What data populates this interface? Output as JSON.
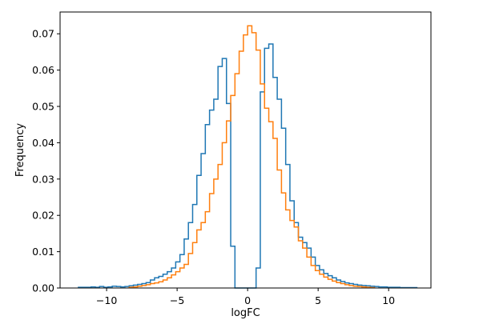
{
  "chart_data": {
    "type": "histogram-step",
    "title": "",
    "xlabel": "logFC",
    "ylabel": "Frequency",
    "xlim": [
      -13.3,
      13.0
    ],
    "ylim": [
      0,
      0.076
    ],
    "xticks": [
      -10,
      -5,
      0,
      5,
      10
    ],
    "xtick_labels": [
      "−10",
      "−5",
      "0",
      "5",
      "10"
    ],
    "yticks": [
      0.0,
      0.01,
      0.02,
      0.03,
      0.04,
      0.05,
      0.06,
      0.07
    ],
    "ytick_labels": [
      "0.00",
      "0.01",
      "0.02",
      "0.03",
      "0.04",
      "0.05",
      "0.06",
      "0.07"
    ],
    "grid": false,
    "legend": "none",
    "series": [
      {
        "color": "#1f77b4",
        "edges": [
          -12.0,
          -11.7,
          -11.4,
          -11.1,
          -10.8,
          -10.5,
          -10.2,
          -9.9,
          -9.6,
          -9.3,
          -9.0,
          -8.7,
          -8.4,
          -8.1,
          -7.8,
          -7.5,
          -7.2,
          -6.9,
          -6.6,
          -6.3,
          -6.0,
          -5.7,
          -5.4,
          -5.1,
          -4.8,
          -4.5,
          -4.2,
          -3.9,
          -3.6,
          -3.3,
          -3.0,
          -2.7,
          -2.4,
          -2.1,
          -1.8,
          -1.5,
          -1.2,
          -0.9,
          -0.6,
          -0.3,
          0.0,
          0.3,
          0.6,
          0.9,
          1.2,
          1.5,
          1.8,
          2.1,
          2.4,
          2.7,
          3.0,
          3.3,
          3.6,
          3.9,
          4.2,
          4.5,
          4.8,
          5.1,
          5.4,
          5.7,
          6.0,
          6.3,
          6.6,
          6.9,
          7.2,
          7.5,
          7.8,
          8.1,
          8.4,
          8.7,
          9.0,
          9.3,
          9.6,
          9.9,
          10.2,
          10.5,
          10.8,
          11.1,
          11.4,
          11.7,
          12.0
        ],
        "values": [
          0.0002,
          0.0002,
          0.0002,
          0.0003,
          0.0002,
          0.0004,
          0.0002,
          0.0003,
          0.0005,
          0.0004,
          0.0003,
          0.0004,
          0.0006,
          0.0008,
          0.001,
          0.0012,
          0.0015,
          0.0022,
          0.0028,
          0.0032,
          0.0038,
          0.0045,
          0.0055,
          0.0072,
          0.0092,
          0.0135,
          0.018,
          0.023,
          0.031,
          0.037,
          0.045,
          0.049,
          0.052,
          0.061,
          0.0632,
          0.0508,
          0.0115,
          0.0,
          0.0,
          0.0,
          0.0,
          0.0,
          0.0055,
          0.054,
          0.066,
          0.0672,
          0.058,
          0.052,
          0.044,
          0.034,
          0.024,
          0.018,
          0.014,
          0.0125,
          0.011,
          0.0085,
          0.0062,
          0.005,
          0.004,
          0.0034,
          0.0028,
          0.0022,
          0.0018,
          0.0014,
          0.0012,
          0.001,
          0.0008,
          0.0007,
          0.0006,
          0.0005,
          0.0004,
          0.0003,
          0.0003,
          0.0002,
          0.0002,
          0.0002,
          0.0001,
          0.0001,
          0.0001,
          0.0001
        ]
      },
      {
        "color": "#ff7f0e",
        "edges": [
          -8.4,
          -8.1,
          -7.8,
          -7.5,
          -7.2,
          -6.9,
          -6.6,
          -6.3,
          -6.0,
          -5.7,
          -5.4,
          -5.1,
          -4.8,
          -4.5,
          -4.2,
          -3.9,
          -3.6,
          -3.3,
          -3.0,
          -2.7,
          -2.4,
          -2.1,
          -1.8,
          -1.5,
          -1.2,
          -0.9,
          -0.6,
          -0.3,
          0.0,
          0.3,
          0.6,
          0.9,
          1.2,
          1.5,
          1.8,
          2.1,
          2.4,
          2.7,
          3.0,
          3.3,
          3.6,
          3.9,
          4.2,
          4.5,
          4.8,
          5.1,
          5.4,
          5.7,
          6.0,
          6.3,
          6.6,
          6.9,
          7.2,
          7.5,
          7.8,
          8.1,
          8.4,
          8.7,
          9.0
        ],
        "values": [
          0.0002,
          0.0003,
          0.0005,
          0.0007,
          0.0009,
          0.0012,
          0.0014,
          0.0017,
          0.0022,
          0.0028,
          0.0036,
          0.0045,
          0.0055,
          0.0065,
          0.0095,
          0.0125,
          0.016,
          0.018,
          0.021,
          0.026,
          0.03,
          0.034,
          0.04,
          0.046,
          0.053,
          0.059,
          0.0652,
          0.0697,
          0.0722,
          0.0703,
          0.0655,
          0.0562,
          0.0495,
          0.0458,
          0.0412,
          0.0325,
          0.0262,
          0.0215,
          0.0186,
          0.0168,
          0.013,
          0.011,
          0.0085,
          0.0062,
          0.0048,
          0.0038,
          0.003,
          0.0024,
          0.0019,
          0.0015,
          0.0012,
          0.0009,
          0.0007,
          0.0005,
          0.0004,
          0.0003,
          0.0002,
          0.0001
        ]
      }
    ]
  }
}
